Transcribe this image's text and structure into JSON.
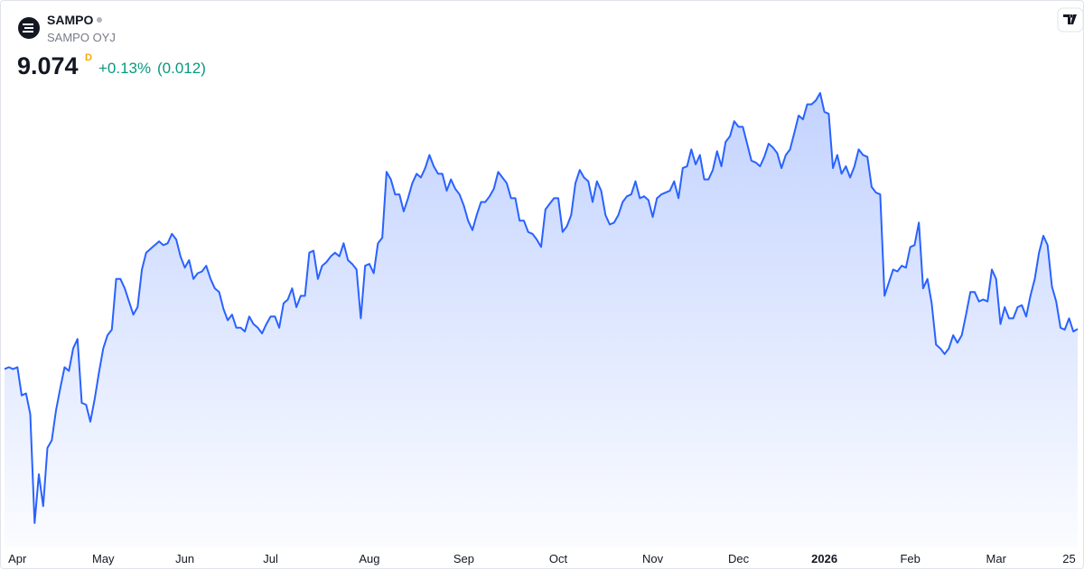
{
  "header": {
    "symbol": "SAMPO",
    "name": "SAMPO OYJ",
    "price": 9.074,
    "interval": "D",
    "change_percent": "+0.13%",
    "change": "(0.012)"
  },
  "chart_data": {
    "type": "area",
    "color": "#2962ff",
    "values": [
      8.86,
      8.87,
      8.86,
      8.87,
      8.72,
      8.73,
      8.62,
      8.04,
      8.3,
      8.13,
      8.44,
      8.48,
      8.64,
      8.76,
      8.87,
      8.85,
      8.97,
      9.02,
      8.68,
      8.67,
      8.58,
      8.7,
      8.84,
      8.97,
      9.04,
      9.07,
      9.34,
      9.34,
      9.29,
      9.22,
      9.15,
      9.19,
      9.39,
      9.48,
      9.5,
      9.52,
      9.54,
      9.52,
      9.53,
      9.58,
      9.55,
      9.46,
      9.4,
      9.44,
      9.34,
      9.37,
      9.38,
      9.41,
      9.34,
      9.29,
      9.27,
      9.18,
      9.12,
      9.15,
      9.08,
      9.08,
      9.06,
      9.14,
      9.1,
      9.08,
      9.05,
      9.1,
      9.14,
      9.14,
      9.08,
      9.21,
      9.23,
      9.29,
      9.19,
      9.25,
      9.25,
      9.48,
      9.49,
      9.34,
      9.41,
      9.43,
      9.46,
      9.48,
      9.46,
      9.53,
      9.44,
      9.42,
      9.39,
      9.13,
      9.41,
      9.42,
      9.37,
      9.53,
      9.56,
      9.91,
      9.87,
      9.79,
      9.79,
      9.7,
      9.77,
      9.85,
      9.9,
      9.88,
      9.93,
      10.0,
      9.94,
      9.9,
      9.9,
      9.81,
      9.87,
      9.82,
      9.79,
      9.73,
      9.65,
      9.6,
      9.68,
      9.75,
      9.75,
      9.78,
      9.82,
      9.91,
      9.88,
      9.85,
      9.77,
      9.77,
      9.65,
      9.65,
      9.59,
      9.58,
      9.55,
      9.51,
      9.71,
      9.74,
      9.77,
      9.77,
      9.59,
      9.62,
      9.68,
      9.85,
      9.92,
      9.88,
      9.86,
      9.75,
      9.86,
      9.81,
      9.68,
      9.63,
      9.64,
      9.68,
      9.75,
      9.78,
      9.79,
      9.86,
      9.77,
      9.78,
      9.76,
      9.67,
      9.77,
      9.79,
      9.8,
      9.81,
      9.86,
      9.77,
      9.93,
      9.94,
      10.03,
      9.95,
      10.0,
      9.87,
      9.87,
      9.92,
      10.02,
      9.94,
      10.07,
      10.1,
      10.18,
      10.15,
      10.15,
      10.06,
      9.97,
      9.96,
      9.94,
      9.99,
      10.06,
      10.04,
      10.01,
      9.93,
      10.0,
      10.03,
      10.12,
      10.21,
      10.19,
      10.27,
      10.27,
      10.29,
      10.33,
      10.23,
      10.22,
      9.93,
      10.0,
      9.9,
      9.94,
      9.88,
      9.94,
      10.03,
      10.0,
      9.99,
      9.83,
      9.8,
      9.79,
      9.25,
      9.32,
      9.39,
      9.38,
      9.41,
      9.4,
      9.51,
      9.52,
      9.64,
      9.29,
      9.34,
      9.21,
      8.99,
      8.97,
      8.94,
      8.97,
      9.04,
      9.0,
      9.04,
      9.15,
      9.27,
      9.27,
      9.22,
      9.23,
      9.22,
      9.39,
      9.34,
      9.1,
      9.19,
      9.13,
      9.13,
      9.19,
      9.2,
      9.14,
      9.25,
      9.34,
      9.48,
      9.57,
      9.52,
      9.3,
      9.22,
      9.08,
      9.07,
      9.13,
      9.06,
      9.074
    ],
    "xticks": [
      {
        "value": 3,
        "label": "Apr"
      },
      {
        "value": 23,
        "label": "May"
      },
      {
        "value": 42,
        "label": "Jun"
      },
      {
        "value": 62,
        "label": "Jul"
      },
      {
        "value": 85,
        "label": "Aug"
      },
      {
        "value": 107,
        "label": "Sep"
      },
      {
        "value": 129,
        "label": "Oct"
      },
      {
        "value": 151,
        "label": "Nov"
      },
      {
        "value": 171,
        "label": "Dec"
      },
      {
        "value": 191,
        "label": "2026"
      },
      {
        "value": 211,
        "label": "Feb"
      },
      {
        "value": 231,
        "label": "Mar"
      },
      {
        "value": 248,
        "label": "25"
      }
    ]
  }
}
